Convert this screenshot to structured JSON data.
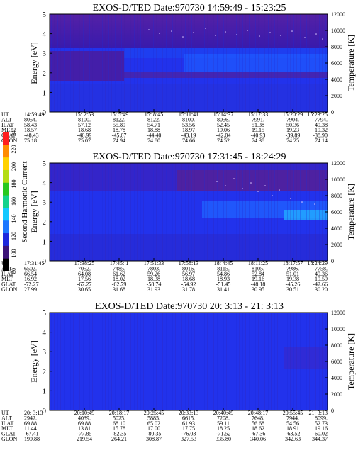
{
  "chart_data": [
    {
      "type": "heatmap",
      "title": "EXOS-D/TED   Date:970730  14:59:49 - 15:23:25",
      "ylabel": "Energy [eV]",
      "y2label": "Temperature [K]",
      "ylim": [
        0,
        5
      ],
      "y2lim": [
        0,
        12000
      ],
      "yticks": [
        0,
        1,
        2,
        3,
        4,
        5
      ],
      "y2ticks": [
        0,
        2000,
        4000,
        6000,
        8000,
        10000,
        12000
      ],
      "table": {
        "row_labels": [
          "UT",
          "ALT",
          "ILAT",
          "MLT",
          "GLAT",
          "GLON"
        ],
        "columns": [
          [
            "14:59:49",
            "8054.",
            "58.43",
            "18.57",
            "-48.43",
            "75.18"
          ],
          [
            "15: 2:53",
            "8100.",
            "57.12",
            "18.68",
            "-46.99",
            "75.07"
          ],
          [
            "15: 5:49",
            "8122.",
            "55.89",
            "18.78",
            "-45.67",
            "74.94"
          ],
          [
            "15: 8:45",
            "8122.",
            "54.71",
            "18.88",
            "-44.40",
            "74.80"
          ],
          [
            "15:11:41",
            "8100.",
            "53.56",
            "18.97",
            "-43.19",
            "74.66"
          ],
          [
            "15:14:37",
            "8056.",
            "52.45",
            "19.06",
            "-42.04",
            "74.52"
          ],
          [
            "15:17:33",
            "7991.",
            "51.38",
            "19.15",
            "-40.93",
            "74.38"
          ],
          [
            "15:20:29",
            "7904.",
            "50.36",
            "19.23",
            "-39.89",
            "74.25"
          ],
          [
            "15:23:25",
            "7794.",
            "49.38",
            "19.32",
            "-38.90",
            "74.14"
          ]
        ]
      }
    },
    {
      "type": "heatmap",
      "title": "EXOS-D/TED   Date:970730  17:31:45 - 18:24:29",
      "ylabel": "Energy [eV]",
      "y2label": "Temperature [K]",
      "ylim": [
        0,
        5
      ],
      "y2lim": [
        0,
        12000
      ],
      "yticks": [
        0,
        1,
        2,
        3,
        4,
        5
      ],
      "y2ticks": [
        0,
        2000,
        4000,
        6000,
        8000,
        10000,
        12000
      ],
      "colorbar": {
        "label": "Second Harmonic Current",
        "ticks": [
          "80",
          "100",
          "120",
          "140",
          "160",
          "180",
          "200",
          "220",
          "240"
        ],
        "colors": [
          "#000000",
          "#3c1478",
          "#1e28dc",
          "#1e78ff",
          "#14c8ff",
          "#14d28c",
          "#28c81e",
          "#b4dc14",
          "#ffd200",
          "#ff8c00",
          "#ff1e1e"
        ]
      },
      "table": {
        "row_labels": [
          "UT",
          "ALT",
          "ILAT",
          "MLT",
          "GLAT",
          "GLON"
        ],
        "columns": [
          [
            "17:31:45",
            "6502.",
            "66.54",
            "16.92",
            "-72.27",
            "27.99"
          ],
          [
            "17:38:25",
            "7052.",
            "64.08",
            "17.56",
            "-67.27",
            "30.65"
          ],
          [
            "17:45: 1",
            "7485.",
            "61.62",
            "18.02",
            "-62.79",
            "31.68"
          ],
          [
            "17:51:33",
            "7803.",
            "59.26",
            "18.38",
            "-58.74",
            "31.93"
          ],
          [
            "17:58:13",
            "8016.",
            "56.97",
            "18.68",
            "-54.92",
            "31.78"
          ],
          [
            "18: 4:45",
            "8115.",
            "54.86",
            "18.93",
            "-51.45",
            "31.41"
          ],
          [
            "18:11:25",
            "8105.",
            "52.84",
            "19.16",
            "-48.18",
            "30.95"
          ],
          [
            "18:17:57",
            "7986.",
            "51.01",
            "19.38",
            "-45.26",
            "30.51"
          ],
          [
            "18:24:29",
            "7758.",
            "49.36",
            "19.59",
            "-42.66",
            "30.20"
          ]
        ]
      }
    },
    {
      "type": "heatmap",
      "title": "EXOS-D/TED   Date:970730  20: 3:13 - 21: 3:13",
      "ylabel": "Energy [eV]",
      "y2label": "Temperature [K]",
      "ylim": [
        0,
        5
      ],
      "y2lim": [
        0,
        12000
      ],
      "yticks": [
        0,
        1,
        2,
        3,
        4,
        5
      ],
      "y2ticks": [
        0,
        2000,
        4000,
        6000,
        8000,
        10000,
        12000
      ],
      "table": {
        "row_labels": [
          "UT",
          "ALT",
          "ILAT",
          "MLT",
          "GLAT",
          "GLON"
        ],
        "columns": [
          [
            "20: 3:13",
            "2942.",
            "69.88",
            "11.44",
            "-67.41",
            "199.88"
          ],
          [
            "20:10:49",
            "4039.",
            "69.88",
            "13.81",
            "-77.85",
            "219.54"
          ],
          [
            "20:18:17",
            "5025.",
            "68.10",
            "15.78",
            "-82.35",
            "264.21"
          ],
          [
            "20:25:45",
            "5885.",
            "65.02",
            "17.00",
            "-80.35",
            "308.87"
          ],
          [
            "20:33:13",
            "6615.",
            "61.93",
            "17.75",
            "-76.03",
            "327.53"
          ],
          [
            "20:40:49",
            "7208.",
            "59.11",
            "18.25",
            "-71.52",
            "335.80"
          ],
          [
            "20:48:17",
            "7648.",
            "56.68",
            "18.62",
            "-67.36",
            "340.06"
          ],
          [
            "20:55:45",
            "7944.",
            "54.56",
            "18.91",
            "-63.52",
            "342.63"
          ],
          [
            "21: 3:13",
            "8099.",
            "52.73",
            "19.16",
            "-60.02",
            "344.37"
          ]
        ]
      }
    }
  ]
}
